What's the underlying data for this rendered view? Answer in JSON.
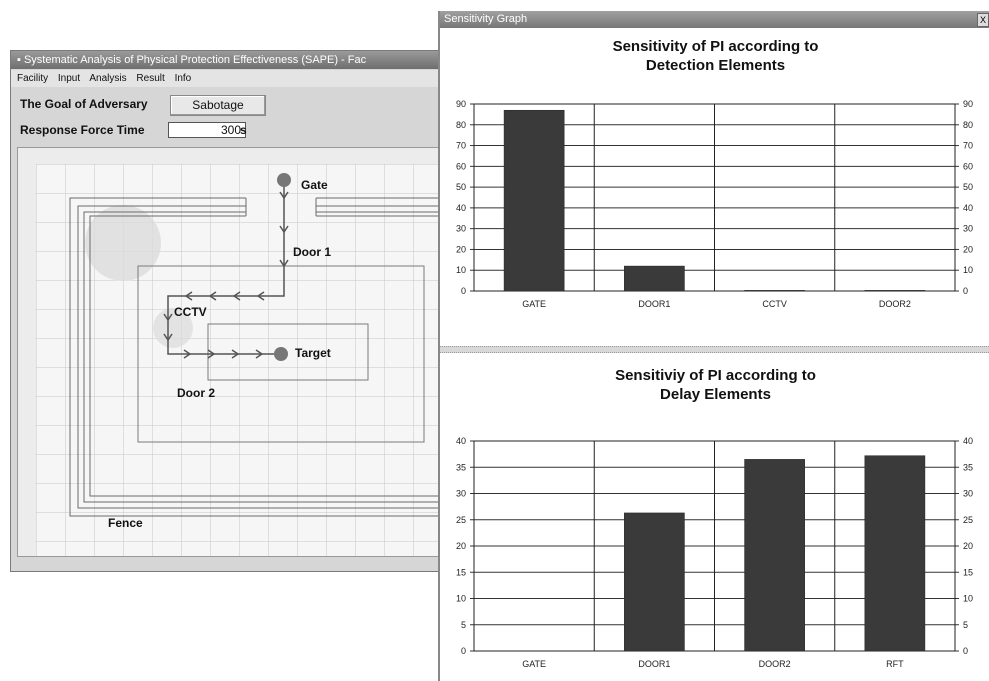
{
  "main_window": {
    "title": "Systematic Analysis of Physical Protection Effectiveness (SAPE) - Fac",
    "menu": [
      "Facility",
      "Input",
      "Analysis",
      "Result",
      "Info"
    ],
    "goal_label": "The Goal of Adversary",
    "goal_value": "Sabotage",
    "response_label": "Response Force Time",
    "response_value": "300",
    "response_unit": "s",
    "site_labels": {
      "gate": "Gate",
      "door1": "Door 1",
      "cctv": "CCTV",
      "target": "Target",
      "door2": "Door 2",
      "fence": "Fence"
    }
  },
  "graph_window": {
    "title": "Sensitivity Graph",
    "close_label": "X"
  },
  "chart_data": [
    {
      "type": "bar",
      "title_line1": "Sensitivity of PI according to",
      "title_line2": "Detection Elements",
      "categories": [
        "GATE",
        "DOOR1",
        "CCTV",
        "DOOR2"
      ],
      "values": [
        87,
        12,
        0.3,
        0.3
      ],
      "ylim": [
        0,
        90
      ],
      "yticks": [
        0,
        10,
        20,
        30,
        40,
        50,
        60,
        70,
        80,
        90
      ],
      "grid": true,
      "bar_color": "#3a3a3a"
    },
    {
      "type": "bar",
      "title_line1": "Sensitiviy of PI according to",
      "title_line2": "Delay Elements",
      "categories": [
        "GATE",
        "DOOR1",
        "DOOR2",
        "RFT"
      ],
      "values": [
        0,
        26.3,
        36.5,
        37.2
      ],
      "ylim": [
        0,
        40
      ],
      "yticks": [
        0,
        5,
        10,
        15,
        20,
        25,
        30,
        35,
        40
      ],
      "grid": true,
      "bar_color": "#3a3a3a"
    }
  ]
}
